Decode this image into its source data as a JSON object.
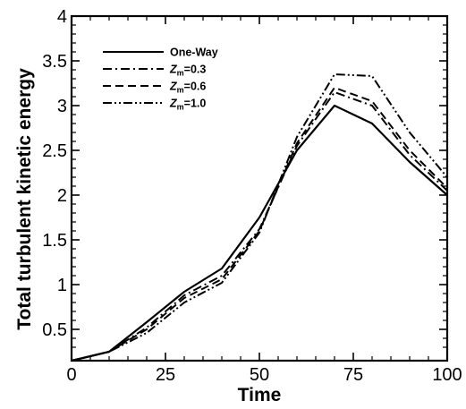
{
  "chart_data": {
    "type": "line",
    "xlabel": "Time",
    "ylabel": "Total turbulent kinetic energy",
    "xlim": [
      0,
      100
    ],
    "ylim": [
      0.15,
      4
    ],
    "xticks": [
      0,
      25,
      50,
      75,
      100
    ],
    "xtick_labels": [
      "0",
      "25",
      "50",
      "75",
      "100"
    ],
    "yticks": [
      0.5,
      1,
      1.5,
      2,
      2.5,
      3,
      3.5,
      4
    ],
    "ytick_labels": [
      "0.5",
      "1",
      "1.5",
      "2",
      "2.5",
      "3",
      "3.5",
      "4"
    ],
    "grid": false,
    "legend_position": "top-left",
    "x": [
      0,
      10,
      20,
      30,
      40,
      50,
      60,
      70,
      80,
      90,
      100
    ],
    "series": [
      {
        "name": "One-Way",
        "name_base": "One-Way",
        "name_sub": "",
        "name_suffix": "",
        "dash": "",
        "values": [
          0.15,
          0.25,
          0.58,
          0.92,
          1.18,
          1.75,
          2.5,
          3.0,
          2.8,
          2.37,
          2.0
        ]
      },
      {
        "name": "Zm=0.3",
        "name_base": "Z",
        "name_sub": "m",
        "name_suffix": "=0.3",
        "dash": "10,4,2,4",
        "values": [
          0.15,
          0.25,
          0.52,
          0.88,
          1.1,
          1.62,
          2.55,
          3.15,
          3.0,
          2.45,
          2.05
        ]
      },
      {
        "name": "Zm=0.6",
        "name_base": "Z",
        "name_sub": "m",
        "name_suffix": "=0.6",
        "dash": "9,5",
        "values": [
          0.15,
          0.25,
          0.5,
          0.85,
          1.06,
          1.6,
          2.58,
          3.2,
          3.05,
          2.5,
          2.08
        ]
      },
      {
        "name": "Zm=1.0",
        "name_base": "Z",
        "name_sub": "m",
        "name_suffix": "=1.0",
        "dash": "10,3,2,3,2,3",
        "values": [
          0.15,
          0.25,
          0.46,
          0.8,
          1.02,
          1.58,
          2.65,
          3.35,
          3.33,
          2.7,
          2.2
        ]
      }
    ]
  }
}
